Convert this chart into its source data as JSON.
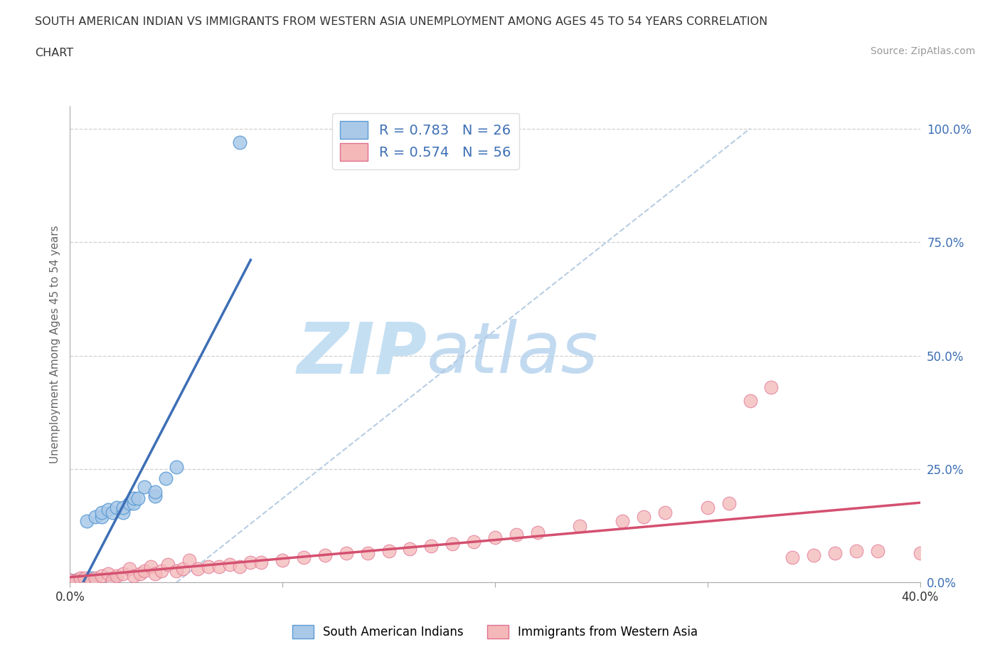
{
  "title_line1": "SOUTH AMERICAN INDIAN VS IMMIGRANTS FROM WESTERN ASIA UNEMPLOYMENT AMONG AGES 45 TO 54 YEARS CORRELATION",
  "title_line2": "CHART",
  "source": "Source: ZipAtlas.com",
  "ylabel": "Unemployment Among Ages 45 to 54 years",
  "xlim": [
    0.0,
    0.4
  ],
  "ylim": [
    0.0,
    1.05
  ],
  "x_ticks": [
    0.0,
    0.1,
    0.2,
    0.3,
    0.4
  ],
  "y_ticks": [
    0.0,
    0.25,
    0.5,
    0.75,
    1.0
  ],
  "blue_R": 0.783,
  "blue_N": 26,
  "pink_R": 0.574,
  "pink_N": 56,
  "blue_fill_color": "#aac9e8",
  "blue_edge_color": "#5b9bd5",
  "pink_fill_color": "#f4b8b8",
  "pink_edge_color": "#e07090",
  "blue_line_color": "#3d6fb5",
  "pink_line_color": "#d45070",
  "diagonal_color": "#b0c8e0",
  "legend_label_blue": "South American Indians",
  "legend_label_pink": "Immigrants from Western Asia",
  "blue_scatter_x": [
    0.0,
    0.003,
    0.005,
    0.007,
    0.008,
    0.01,
    0.01,
    0.012,
    0.015,
    0.015,
    0.018,
    0.02,
    0.02,
    0.022,
    0.025,
    0.025,
    0.028,
    0.03,
    0.03,
    0.032,
    0.035,
    0.04,
    0.04,
    0.045,
    0.05,
    0.08
  ],
  "blue_scatter_y": [
    0.005,
    0.005,
    0.005,
    0.005,
    0.135,
    0.005,
    0.01,
    0.145,
    0.145,
    0.155,
    0.16,
    0.005,
    0.155,
    0.165,
    0.155,
    0.165,
    0.175,
    0.175,
    0.185,
    0.185,
    0.21,
    0.19,
    0.2,
    0.23,
    0.255,
    0.97
  ],
  "pink_scatter_x": [
    0.0,
    0.003,
    0.005,
    0.007,
    0.01,
    0.012,
    0.015,
    0.018,
    0.02,
    0.022,
    0.025,
    0.028,
    0.03,
    0.033,
    0.035,
    0.038,
    0.04,
    0.043,
    0.046,
    0.05,
    0.053,
    0.056,
    0.06,
    0.065,
    0.07,
    0.075,
    0.08,
    0.085,
    0.09,
    0.1,
    0.11,
    0.12,
    0.13,
    0.14,
    0.15,
    0.16,
    0.17,
    0.18,
    0.19,
    0.2,
    0.21,
    0.22,
    0.24,
    0.26,
    0.27,
    0.28,
    0.3,
    0.31,
    0.32,
    0.33,
    0.34,
    0.35,
    0.36,
    0.37,
    0.38,
    0.4
  ],
  "pink_scatter_y": [
    0.005,
    0.005,
    0.01,
    0.01,
    0.005,
    0.01,
    0.015,
    0.02,
    0.005,
    0.015,
    0.02,
    0.03,
    0.015,
    0.02,
    0.025,
    0.035,
    0.02,
    0.025,
    0.04,
    0.025,
    0.03,
    0.05,
    0.03,
    0.035,
    0.035,
    0.04,
    0.035,
    0.045,
    0.045,
    0.05,
    0.055,
    0.06,
    0.065,
    0.065,
    0.07,
    0.075,
    0.08,
    0.085,
    0.09,
    0.1,
    0.105,
    0.11,
    0.125,
    0.135,
    0.145,
    0.155,
    0.165,
    0.175,
    0.4,
    0.43,
    0.055,
    0.06,
    0.065,
    0.07,
    0.07,
    0.065
  ],
  "background_color": "#ffffff",
  "grid_color": "#d0d0d0",
  "title_color": "#333333",
  "source_color": "#999999",
  "ylabel_color": "#666666",
  "ytick_color": "#3d6fb5"
}
